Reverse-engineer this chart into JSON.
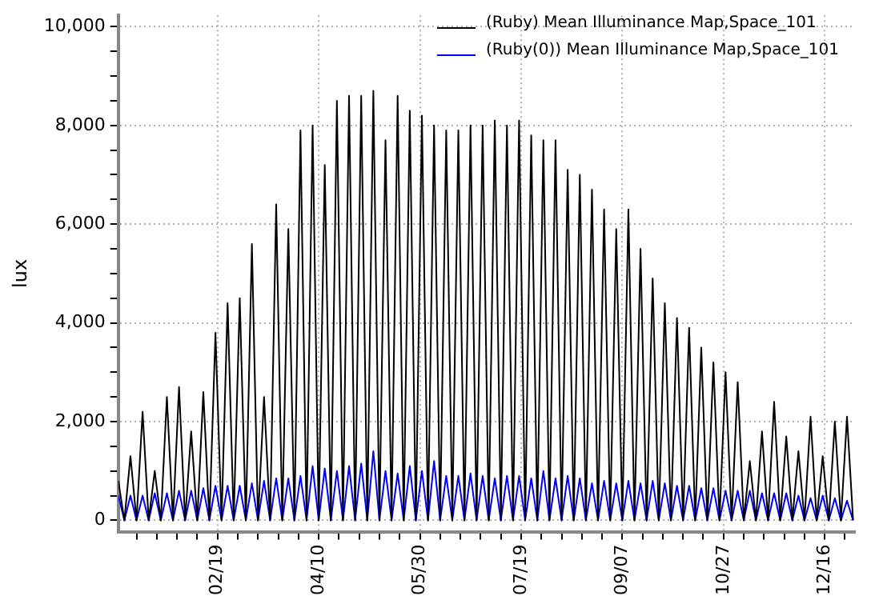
{
  "chart_data": {
    "type": "line",
    "ylabel": "lux",
    "legend": "top right",
    "grid": true,
    "xlim": [
      "--01-01",
      "--12-31"
    ],
    "xticks": [
      {
        "value": "--01-10",
        "label": null
      },
      {
        "value": "--01-20",
        "label": null
      },
      {
        "value": "--01-30",
        "label": null
      },
      {
        "value": "--02-09",
        "label": null
      },
      {
        "value": "--02-19",
        "label": "02/19"
      },
      {
        "value": "--03-01",
        "label": null
      },
      {
        "value": "--03-11",
        "label": null
      },
      {
        "value": "--03-21",
        "label": null
      },
      {
        "value": "--03-31",
        "label": null
      },
      {
        "value": "--04-10",
        "label": "04/10"
      },
      {
        "value": "--04-20",
        "label": null
      },
      {
        "value": "--04-30",
        "label": null
      },
      {
        "value": "--05-10",
        "label": null
      },
      {
        "value": "--05-20",
        "label": null
      },
      {
        "value": "--05-30",
        "label": "05/30"
      },
      {
        "value": "--06-09",
        "label": null
      },
      {
        "value": "--06-19",
        "label": null
      },
      {
        "value": "--06-29",
        "label": null
      },
      {
        "value": "--07-09",
        "label": null
      },
      {
        "value": "--07-19",
        "label": "07/19"
      },
      {
        "value": "--07-29",
        "label": null
      },
      {
        "value": "--08-08",
        "label": null
      },
      {
        "value": "--08-18",
        "label": null
      },
      {
        "value": "--08-28",
        "label": null
      },
      {
        "value": "--09-07",
        "label": "09/07"
      },
      {
        "value": "--09-17",
        "label": null
      },
      {
        "value": "--09-27",
        "label": null
      },
      {
        "value": "--10-07",
        "label": null
      },
      {
        "value": "--10-17",
        "label": null
      },
      {
        "value": "--10-27",
        "label": "10/27"
      },
      {
        "value": "--11-06",
        "label": null
      },
      {
        "value": "--11-16",
        "label": null
      },
      {
        "value": "--11-26",
        "label": null
      },
      {
        "value": "--12-06",
        "label": null
      },
      {
        "value": "--12-16",
        "label": "12/16"
      },
      {
        "value": "--12-26",
        "label": null
      }
    ],
    "ylim": [
      -230,
      10230
    ],
    "yticks": [
      0,
      {
        "value": 500,
        "label": null
      },
      {
        "value": 1000,
        "label": null
      },
      {
        "value": 1500,
        "label": null
      },
      {
        "value": 2000,
        "label": "2,000"
      },
      {
        "value": 2500,
        "label": null
      },
      {
        "value": 3000,
        "label": null
      },
      {
        "value": 3500,
        "label": null
      },
      {
        "value": 4000,
        "label": "4,000"
      },
      {
        "value": 4500,
        "label": null
      },
      {
        "value": 5000,
        "label": null
      },
      {
        "value": 5500,
        "label": null
      },
      {
        "value": 6000,
        "label": "6,000"
      },
      {
        "value": 6500,
        "label": null
      },
      {
        "value": 7000,
        "label": null
      },
      {
        "value": 7500,
        "label": null
      },
      {
        "value": 8000,
        "label": "8,000"
      },
      {
        "value": 8500,
        "label": null
      },
      {
        "value": 9000,
        "label": null
      },
      {
        "value": 9500,
        "label": null
      },
      {
        "value": 10000,
        "label": "10,000"
      }
    ],
    "x": [
      "--01-01",
      "--01-04",
      "--01-07",
      "--01-10",
      "--01-13",
      "--01-16",
      "--01-19",
      "--01-22",
      "--01-25",
      "--01-28",
      "--01-31",
      "--02-03",
      "--02-06",
      "--02-09",
      "--02-12",
      "--02-15",
      "--02-18",
      "--02-21",
      "--02-24",
      "--02-27",
      "--03-02",
      "--03-05",
      "--03-08",
      "--03-11",
      "--03-14",
      "--03-17",
      "--03-20",
      "--03-23",
      "--03-26",
      "--03-29",
      "--04-01",
      "--04-04",
      "--04-07",
      "--04-10",
      "--04-13",
      "--04-16",
      "--04-19",
      "--04-22",
      "--04-25",
      "--04-28",
      "--05-01",
      "--05-04",
      "--05-07",
      "--05-10",
      "--05-13",
      "--05-16",
      "--05-19",
      "--05-22",
      "--05-25",
      "--05-28",
      "--05-31",
      "--06-03",
      "--06-06",
      "--06-09",
      "--06-12",
      "--06-15",
      "--06-18",
      "--06-21",
      "--06-24",
      "--06-27",
      "--06-30",
      "--07-03",
      "--07-06",
      "--07-09",
      "--07-12",
      "--07-15",
      "--07-18",
      "--07-21",
      "--07-24",
      "--07-27",
      "--07-30",
      "--08-02",
      "--08-05",
      "--08-08",
      "--08-11",
      "--08-14",
      "--08-17",
      "--08-20",
      "--08-23",
      "--08-26",
      "--08-29",
      "--09-01",
      "--09-04",
      "--09-07",
      "--09-10",
      "--09-13",
      "--09-16",
      "--09-19",
      "--09-22",
      "--09-25",
      "--09-28",
      "--10-01",
      "--10-04",
      "--10-07",
      "--10-10",
      "--10-13",
      "--10-16",
      "--10-19",
      "--10-22",
      "--10-25",
      "--10-28",
      "--10-31",
      "--11-03",
      "--11-06",
      "--11-09",
      "--11-12",
      "--11-15",
      "--11-18",
      "--11-21",
      "--11-24",
      "--11-27",
      "--11-30",
      "--12-03",
      "--12-06",
      "--12-09",
      "--12-12",
      "--12-15",
      "--12-18",
      "--12-21",
      "--12-24",
      "--12-27",
      "--12-30"
    ],
    "series": [
      {
        "name": "(Ruby) Mean Illuminance Map,Space_101",
        "color": "#000000",
        "values": [
          800,
          0,
          1300,
          0,
          2200,
          0,
          1000,
          0,
          2500,
          0,
          2700,
          0,
          1800,
          0,
          2600,
          0,
          3800,
          0,
          4400,
          0,
          4500,
          0,
          5600,
          0,
          2500,
          0,
          6400,
          0,
          5900,
          0,
          7900,
          0,
          8000,
          0,
          7200,
          0,
          8500,
          0,
          8600,
          0,
          8600,
          0,
          8700,
          0,
          7700,
          0,
          8600,
          0,
          8300,
          0,
          8200,
          0,
          8000,
          0,
          7900,
          0,
          7900,
          0,
          8000,
          0,
          8000,
          0,
          8100,
          0,
          8000,
          0,
          8100,
          0,
          7800,
          0,
          7700,
          0,
          7700,
          0,
          7100,
          0,
          7000,
          0,
          6700,
          0,
          6300,
          0,
          5900,
          0,
          6300,
          0,
          5500,
          0,
          4900,
          0,
          4400,
          0,
          4100,
          0,
          3900,
          0,
          3500,
          0,
          3200,
          0,
          3000,
          0,
          2800,
          0,
          1200,
          0,
          1800,
          0,
          2400,
          0,
          1700,
          0,
          1400,
          0,
          2100,
          0,
          1300,
          0,
          2000,
          0,
          2100,
          0
        ]
      },
      {
        "name": "(Ruby(0)) Mean Illuminance Map,Space_101",
        "color": "#0000ff",
        "values": [
          500,
          0,
          500,
          0,
          500,
          0,
          550,
          0,
          550,
          0,
          600,
          0,
          600,
          0,
          650,
          0,
          700,
          0,
          700,
          0,
          700,
          0,
          750,
          0,
          800,
          0,
          850,
          0,
          850,
          0,
          900,
          0,
          1100,
          0,
          1050,
          0,
          1000,
          0,
          1100,
          0,
          1150,
          0,
          1400,
          0,
          1000,
          0,
          950,
          0,
          1100,
          0,
          1000,
          0,
          1200,
          0,
          900,
          0,
          900,
          0,
          950,
          0,
          900,
          0,
          850,
          0,
          900,
          0,
          900,
          0,
          850,
          0,
          1000,
          0,
          850,
          0,
          900,
          0,
          850,
          0,
          750,
          0,
          800,
          0,
          750,
          0,
          800,
          0,
          750,
          0,
          800,
          0,
          750,
          0,
          700,
          0,
          700,
          0,
          650,
          0,
          650,
          0,
          600,
          0,
          600,
          0,
          600,
          0,
          550,
          0,
          550,
          0,
          550,
          0,
          500,
          0,
          450,
          0,
          500,
          0,
          450,
          0,
          400,
          0
        ]
      }
    ]
  }
}
